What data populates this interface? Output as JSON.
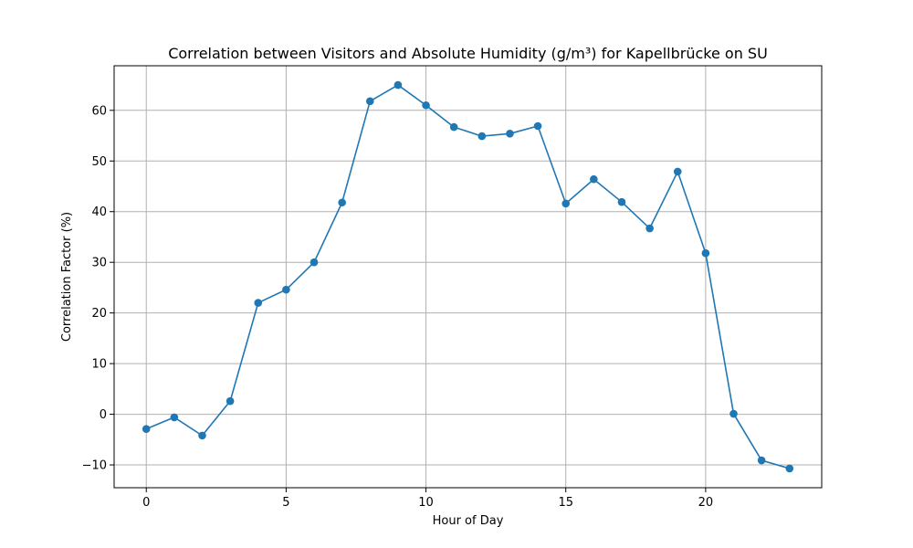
{
  "chart_data": {
    "type": "line",
    "title": "Correlation between Visitors and Absolute Humidity (g/m³) for Kapellbrücke on SU",
    "xlabel": "Hour of Day",
    "ylabel": "Correlation Factor (%)",
    "x": [
      0,
      1,
      2,
      3,
      4,
      5,
      6,
      7,
      8,
      9,
      10,
      11,
      12,
      13,
      14,
      15,
      16,
      17,
      18,
      19,
      20,
      21,
      22,
      23
    ],
    "series": [
      {
        "values": [
          -2.9,
          -0.6,
          -4.2,
          2.6,
          22.0,
          24.6,
          30.0,
          41.8,
          61.8,
          65.0,
          61.0,
          56.7,
          54.9,
          55.4,
          56.9,
          41.6,
          46.4,
          41.9,
          36.7,
          47.9,
          31.8,
          0.1,
          -9.1,
          -10.7
        ]
      }
    ],
    "xlim": [
      -1.15,
      24.15
    ],
    "ylim": [
      -14.5,
      68.8
    ],
    "xticks": [
      0,
      5,
      10,
      15,
      20
    ],
    "yticks": [
      -10,
      0,
      10,
      20,
      30,
      40,
      50,
      60
    ],
    "grid": true,
    "color": "#1f77b4",
    "grid_color": "#b0b0b0"
  }
}
